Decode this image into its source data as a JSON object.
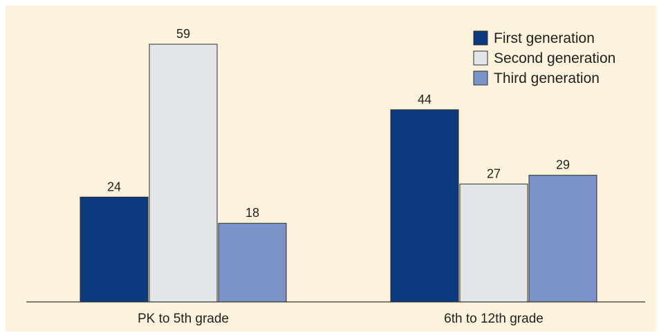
{
  "chart_data": {
    "type": "bar",
    "categories": [
      "PK to 5th grade",
      "6th to 12th grade"
    ],
    "series": [
      {
        "name": "First generation",
        "values": [
          24,
          44
        ],
        "color": "#0b3a7e"
      },
      {
        "name": "Second generation",
        "values": [
          59,
          27
        ],
        "color": "#e3e7e9"
      },
      {
        "name": "Third generation",
        "values": [
          18,
          29
        ],
        "color": "#7b93c9"
      }
    ],
    "legend_position": "top-right",
    "grid": false,
    "ylim": [
      0,
      59
    ]
  }
}
